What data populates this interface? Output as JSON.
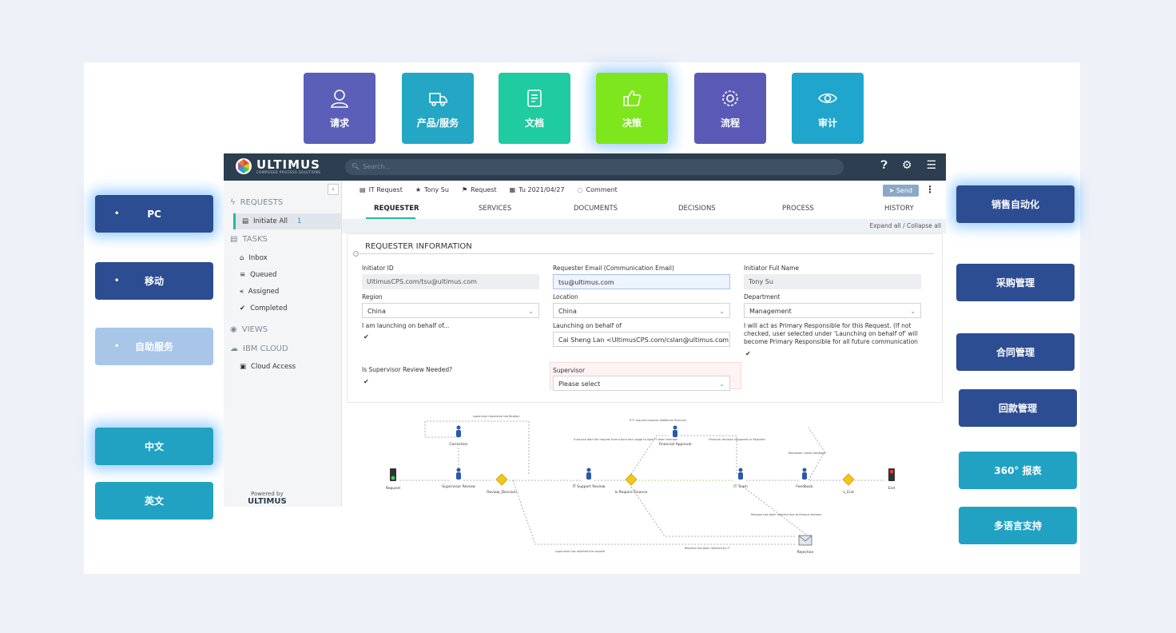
{
  "feature_tiles": [
    {
      "label": "请求",
      "color": "#5b5fb8",
      "icon": "person-icon"
    },
    {
      "label": "产品/服务",
      "color": "#23a7c4",
      "icon": "truck-icon"
    },
    {
      "label": "文档",
      "color": "#1fcba0",
      "icon": "document-icon"
    },
    {
      "label": "决策",
      "color": "#7ee61c",
      "icon": "thumbs-up-icon"
    },
    {
      "label": "流程",
      "color": "#5a59b6",
      "icon": "gear-icon"
    },
    {
      "label": "审计",
      "color": "#20a6cc",
      "icon": "eye-icon"
    }
  ],
  "left_buttons": [
    {
      "label": "PC",
      "color": "#2d4d93"
    },
    {
      "label": "移动",
      "color": "#2d4d93"
    },
    {
      "label": "自助服务",
      "color": "#a7c6e8"
    },
    {
      "label": "中文",
      "color": "#21a2c3"
    },
    {
      "label": "英文",
      "color": "#21a2c3"
    }
  ],
  "right_buttons": [
    {
      "label": "销售自动化",
      "color": "#2d4d93"
    },
    {
      "label": "采购管理",
      "color": "#2d4d93"
    },
    {
      "label": "合同管理",
      "color": "#2d4d93"
    },
    {
      "label": "回款管理",
      "color": "#2d4d93"
    },
    {
      "label": "360° 报表",
      "color": "#21a2c3"
    },
    {
      "label": "多语言支持",
      "color": "#21a2c3"
    }
  ],
  "app": {
    "logo": {
      "name": "ULTIMUS",
      "tagline": "COMPOSED PROCESS SOLUTIONS"
    },
    "search_placeholder": "Search...",
    "sidebar": {
      "requests": "REQUESTS",
      "initiate_all": "Initiate All",
      "initiate_all_count": "1",
      "tasks": "TASKS",
      "inbox": "Inbox",
      "queued": "Queued",
      "assigned": "Assigned",
      "completed": "Completed",
      "views": "VIEWS",
      "ibm_cloud": "IBM CLOUD",
      "cloud_access": "Cloud Access",
      "powered_by": "Powered by",
      "powered_brand": "ULTIMUS"
    },
    "crumbs": {
      "request_type": "IT Request",
      "user": "Tony Su",
      "form": "Request",
      "date": "Tu 2021/04/27",
      "comment": "Comment"
    },
    "send": "Send",
    "tabs": [
      "REQUESTER",
      "SERVICES",
      "DOCUMENTS",
      "DECISIONS",
      "PROCESS",
      "HISTORY"
    ],
    "expand_collapse": "Expand all / Collapse all",
    "section_title": "REQUESTER INFORMATION",
    "fields": {
      "initiator_id_label": "Initiator ID",
      "initiator_id": "UltimusCPS.com/tsu@ultimus.com",
      "email_label": "Requester Email (Communication Email)",
      "email": "tsu@ultimus.com",
      "fullname_label": "Initiator Full Name",
      "fullname": "Tony Su",
      "region_label": "Region",
      "region": "China",
      "location_label": "Location",
      "location": "China",
      "department_label": "Department",
      "department": "Management",
      "behalf_label": "I am launching on behalf of...",
      "launching_label": "Launching on behalf of",
      "launching": "Cai Sheng Lan <UltimusCPS.com/cslan@ultimus.com",
      "primary_note": "I will act as Primary Responsible for this Request. (If not checked, user selected under 'Launching on behalf of' will become Primary Responsible for all future communication",
      "supervisor_review_label": "Is Supervisor Review Needed?",
      "supervisor_label": "Supervisor",
      "supervisor": "Please select"
    },
    "flow": {
      "nodes": [
        "Request",
        "Supervisor Review",
        "Review_Decision",
        "Correction",
        "IT Support Review",
        "Is Require Finance",
        "Financial Approval",
        "IT Team",
        "Feedback",
        "L_End",
        "End",
        "Rejection"
      ],
      "edge_labels": [
        "supervisor requested clarification",
        "If IT request requires additional financial",
        "If service able the request from future and usage to right IT team member",
        "Financial decision happened or Rejected",
        "Requester closes feedback",
        "Request has been rejected due to finance decision",
        "supervisor has rejected the request",
        "Request has been rejected by IT"
      ]
    }
  }
}
